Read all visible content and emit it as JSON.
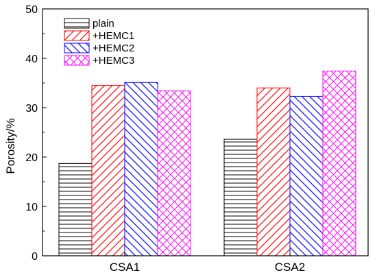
{
  "chart_data": {
    "type": "bar",
    "categories": [
      "CSA1",
      "CSA2"
    ],
    "series": [
      {
        "name": "plain",
        "values": [
          18.7,
          23.6
        ],
        "color": "#000000",
        "pattern": "horizontal-lines"
      },
      {
        "name": "+HEMC1",
        "values": [
          34.5,
          34.0
        ],
        "color": "#ff0000",
        "pattern": "diagonal-up"
      },
      {
        "name": "+HEMC2",
        "values": [
          35.1,
          32.3
        ],
        "color": "#0000ff",
        "pattern": "diagonal-down"
      },
      {
        "name": "+HEMC3",
        "values": [
          33.4,
          37.4
        ],
        "color": "#ff00ff",
        "pattern": "crosshatch"
      }
    ],
    "title": "",
    "xlabel": "",
    "ylabel": "Porosity/%",
    "ylim": [
      0,
      50
    ],
    "yticks": [
      "0",
      "10",
      "20",
      "30",
      "40",
      "50"
    ],
    "grid": false,
    "legend_position": "top-left"
  }
}
